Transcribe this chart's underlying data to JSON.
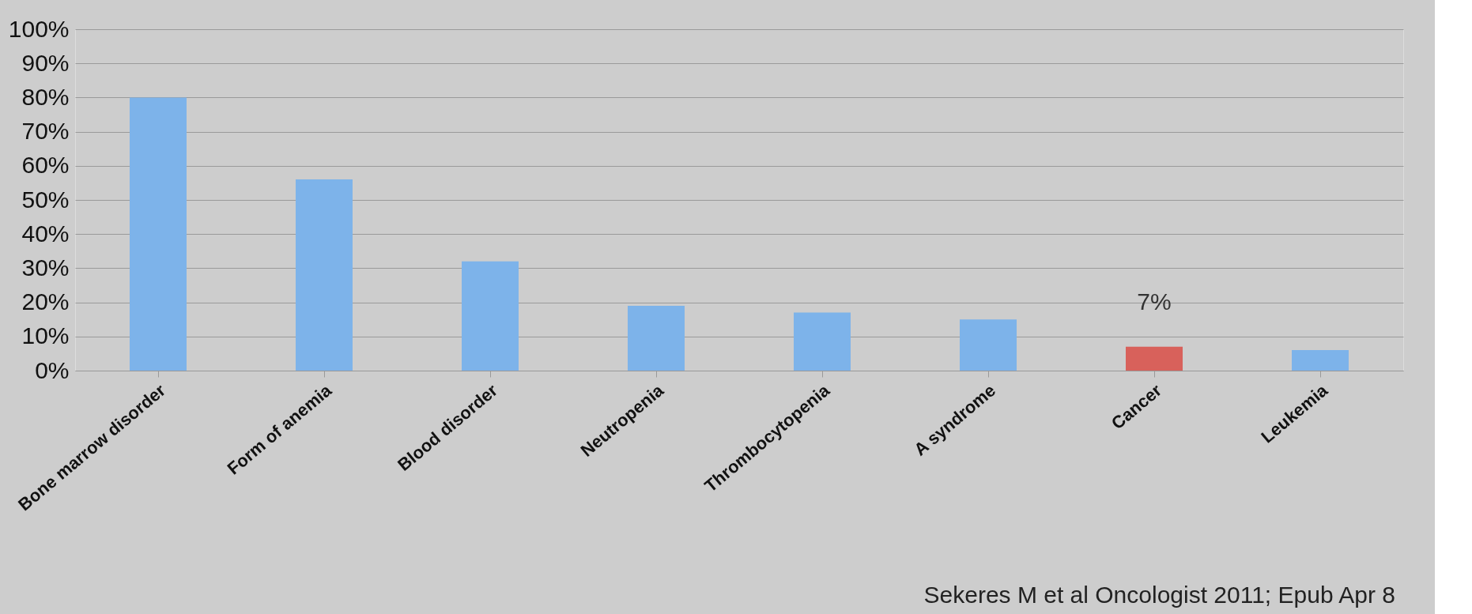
{
  "chart_data": {
    "type": "bar",
    "categories": [
      "Bone marrow disorder",
      "Form of anemia",
      "Blood disorder",
      "Neutropenia",
      "Thrombocytopenia",
      "A syndrome",
      "Cancer",
      "Leukemia"
    ],
    "values": [
      80,
      56,
      32,
      19,
      17,
      15,
      7,
      6
    ],
    "colors": [
      "#7db3ea",
      "#7db3ea",
      "#7db3ea",
      "#7db3ea",
      "#7db3ea",
      "#7db3ea",
      "#d8615b",
      "#7db3ea"
    ],
    "value_labels": [
      null,
      null,
      null,
      null,
      null,
      null,
      "7%",
      null
    ],
    "ylim": [
      0,
      100
    ],
    "yticks": [
      {
        "value": 0,
        "label": "0%"
      },
      {
        "value": 10,
        "label": "10%"
      },
      {
        "value": 20,
        "label": "20%"
      },
      {
        "value": 30,
        "label": "30%"
      },
      {
        "value": 40,
        "label": "40%"
      },
      {
        "value": 50,
        "label": "50%"
      },
      {
        "value": 60,
        "label": "60%"
      },
      {
        "value": 70,
        "label": "70%"
      },
      {
        "value": 80,
        "label": "80%"
      },
      {
        "value": 90,
        "label": "90%"
      },
      {
        "value": 100,
        "label": "100%"
      }
    ],
    "grid": "y",
    "annotations": [
      "Sekeres M et al Oncologist 2011; Epub Apr 8"
    ]
  }
}
